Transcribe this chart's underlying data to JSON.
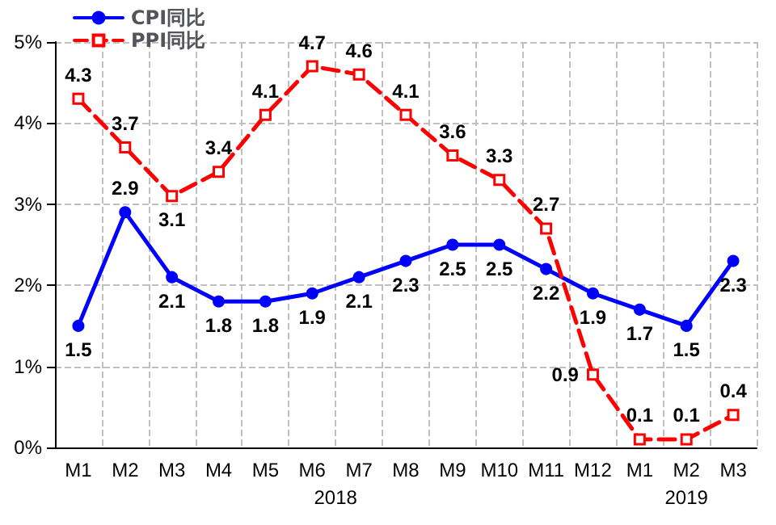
{
  "chart_data": {
    "type": "line",
    "categories": [
      "M1",
      "M2",
      "M3",
      "M4",
      "M5",
      "M6",
      "M7",
      "M8",
      "M9",
      "M10",
      "M11",
      "M12",
      "M1",
      "M2",
      "M3"
    ],
    "series": [
      {
        "name": "CPI同比",
        "color": "#0000ff",
        "marker": "circle",
        "line_style": "solid",
        "values": [
          1.5,
          2.9,
          2.1,
          1.8,
          1.8,
          1.9,
          2.1,
          2.3,
          2.5,
          2.5,
          2.2,
          1.9,
          1.7,
          1.5,
          2.3
        ]
      },
      {
        "name": "PPI同比",
        "color": "#ff0000",
        "marker": "square",
        "line_style": "dashed",
        "values": [
          4.3,
          3.7,
          3.1,
          3.4,
          4.1,
          4.7,
          4.6,
          4.1,
          3.6,
          3.3,
          2.7,
          0.9,
          0.1,
          0.1,
          0.4
        ]
      }
    ],
    "ylim": [
      0,
      5
    ],
    "yticks": [
      {
        "value": 0,
        "label": "0%"
      },
      {
        "value": 1,
        "label": "1%"
      },
      {
        "value": 2,
        "label": "2%"
      },
      {
        "value": 3,
        "label": "3%"
      },
      {
        "value": 4,
        "label": "4%"
      },
      {
        "value": 5,
        "label": "5%"
      }
    ],
    "annotations": [
      "2018",
      "2019"
    ],
    "grid": true,
    "legend": "top left",
    "data_labels": true
  }
}
